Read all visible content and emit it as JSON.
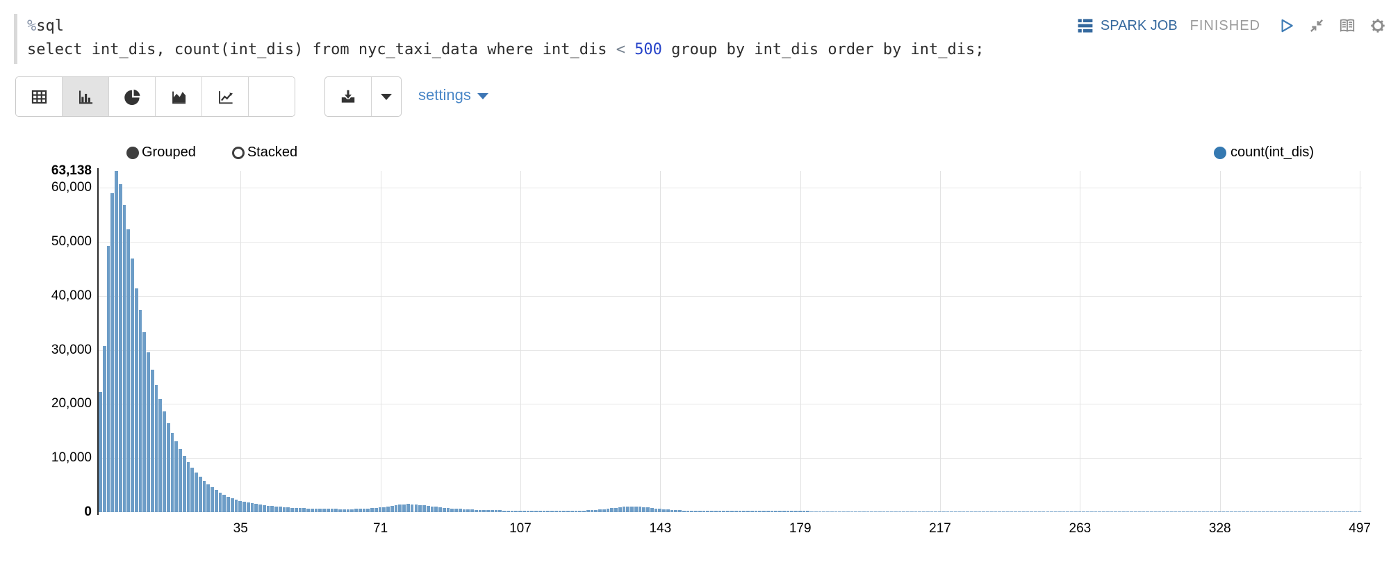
{
  "editor": {
    "interpreter_prefix": "%",
    "interpreter_name": "sql",
    "query_before": "select int_dis, count(int_dis) from nyc_taxi_data where int_dis ",
    "query_operator": "<",
    "query_space": " ",
    "query_number": "500",
    "query_after": " group by int_dis order by int_dis;"
  },
  "status_bar": {
    "spark_job_label": "SPARK JOB",
    "status": "FINISHED"
  },
  "toolbar": {
    "settings_label": "settings",
    "chart_type_buttons": [
      "table-icon",
      "bar-chart-icon",
      "pie-chart-icon",
      "area-chart-icon",
      "line-chart-icon",
      "empty"
    ],
    "selected_chart_type": "bar",
    "export_buttons": [
      "download-icon",
      "caret-down-icon"
    ]
  },
  "chart_controls": {
    "grouped_label": "Grouped",
    "stacked_label": "Stacked",
    "selected_mode": "Grouped"
  },
  "legend": {
    "series_label": "count(int_dis)",
    "color": "#3579b1"
  },
  "colors": {
    "bar": "#6d9dc7",
    "legend_dot": "#3579b1",
    "link_blue": "#4a87c7",
    "spark_blue": "#35699e",
    "status_gray": "#9b9b9b",
    "grid": "#e4e4e4"
  },
  "chart_data": {
    "type": "bar",
    "title": "",
    "series": [
      {
        "name": "count(int_dis)",
        "color": "#3579b1"
      }
    ],
    "x_axis_note": "ordinal int_dis categories 0..497 (316 distinct values), tick labels at even category-index steps",
    "ylim": [
      0,
      63138
    ],
    "y_ticks": [
      {
        "label": "63,138",
        "value": 63138,
        "bold": true,
        "gridline": false
      },
      {
        "label": "60,000",
        "value": 60000,
        "bold": false,
        "gridline": true
      },
      {
        "label": "50,000",
        "value": 50000,
        "bold": false,
        "gridline": true
      },
      {
        "label": "40,000",
        "value": 40000,
        "bold": false,
        "gridline": true
      },
      {
        "label": "30,000",
        "value": 30000,
        "bold": false,
        "gridline": true
      },
      {
        "label": "20,000",
        "value": 20000,
        "bold": false,
        "gridline": true
      },
      {
        "label": "10,000",
        "value": 10000,
        "bold": false,
        "gridline": true
      },
      {
        "label": "0",
        "value": 0,
        "bold": true,
        "gridline": true
      }
    ],
    "x_ticks": [
      {
        "index": 35,
        "label": "35"
      },
      {
        "index": 70,
        "label": "71"
      },
      {
        "index": 105,
        "label": "107"
      },
      {
        "index": 140,
        "label": "143"
      },
      {
        "index": 175,
        "label": "179"
      },
      {
        "index": 210,
        "label": "217"
      },
      {
        "index": 245,
        "label": "263"
      },
      {
        "index": 280,
        "label": "328"
      },
      {
        "index": 315,
        "label": "497"
      }
    ],
    "values": [
      22300,
      30700,
      49300,
      59000,
      63138,
      60700,
      56800,
      52300,
      46900,
      41400,
      37400,
      33300,
      29600,
      26400,
      23500,
      20900,
      18600,
      16500,
      14700,
      13100,
      11700,
      10400,
      9250,
      8230,
      7330,
      6520,
      5800,
      5160,
      4590,
      4090,
      3640,
      3240,
      2880,
      2560,
      2280,
      2030,
      1890,
      1760,
      1630,
      1520,
      1410,
      1310,
      1220,
      1140,
      1060,
      985,
      915,
      850,
      790,
      765,
      738,
      712,
      688,
      665,
      650,
      640,
      620,
      605,
      592,
      582,
      575,
      572,
      572,
      578,
      590,
      610,
      640,
      680,
      730,
      790,
      860,
      940,
      1030,
      1130,
      1240,
      1360,
      1470,
      1500,
      1480,
      1420,
      1340,
      1250,
      1160,
      1070,
      985,
      905,
      830,
      760,
      695,
      640,
      590,
      545,
      505,
      470,
      440,
      415,
      393,
      374,
      358,
      344,
      332,
      322,
      313,
      305,
      298,
      290,
      283,
      277,
      270,
      263,
      257,
      251,
      246,
      242,
      239,
      237,
      236,
      236,
      238,
      250,
      265,
      290,
      325,
      370,
      425,
      490,
      565,
      650,
      740,
      830,
      920,
      1000,
      1050,
      1070,
      1050,
      1000,
      930,
      850,
      770,
      690,
      615,
      550,
      490,
      440,
      395,
      355,
      320,
      295,
      272,
      252,
      235,
      224,
      223,
      222,
      221,
      220,
      218,
      217,
      216,
      215,
      214,
      213,
      212,
      211,
      210,
      209,
      207,
      206,
      205,
      204,
      203,
      202,
      201,
      200,
      199,
      198,
      196,
      195,
      194,
      193,
      192,
      191,
      190,
      189,
      188,
      187,
      185,
      184,
      183,
      182,
      181,
      180,
      179,
      178,
      177,
      176,
      174,
      173,
      172,
      171,
      170,
      169,
      168,
      167,
      166,
      165,
      163,
      162,
      161,
      160,
      159,
      158,
      157,
      156,
      155,
      154,
      152,
      151,
      150,
      149,
      148,
      147,
      146,
      145,
      144,
      143,
      141,
      140,
      139,
      138,
      137,
      136,
      135,
      134,
      133,
      132,
      130,
      129,
      128,
      127,
      126,
      125,
      124,
      123,
      122,
      121,
      119,
      118,
      117,
      116,
      115,
      114,
      113,
      112,
      111,
      110,
      108,
      107,
      106,
      105,
      104,
      103,
      102,
      101,
      100,
      99,
      97,
      96,
      95,
      94,
      93,
      92,
      91,
      90,
      89,
      88,
      86,
      85,
      84,
      83,
      82,
      81,
      80,
      79,
      78,
      77,
      75,
      74,
      73,
      72,
      71,
      70,
      69,
      68,
      67,
      66,
      64,
      63,
      62,
      61,
      60,
      59,
      58,
      57,
      56,
      55,
      53,
      52,
      51,
      50,
      49,
      48,
      47,
      46,
      45,
      44
    ]
  }
}
